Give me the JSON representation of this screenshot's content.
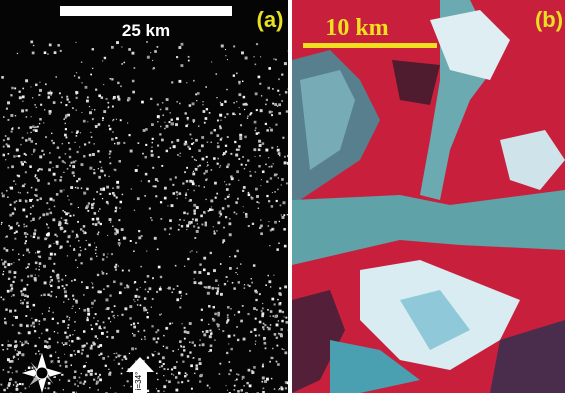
{
  "panels": [
    {
      "label": "(a)",
      "scale_bar": "25 km",
      "incidence": "i=34°"
    },
    {
      "label": "(b)",
      "scale_bar": "10 km"
    }
  ]
}
